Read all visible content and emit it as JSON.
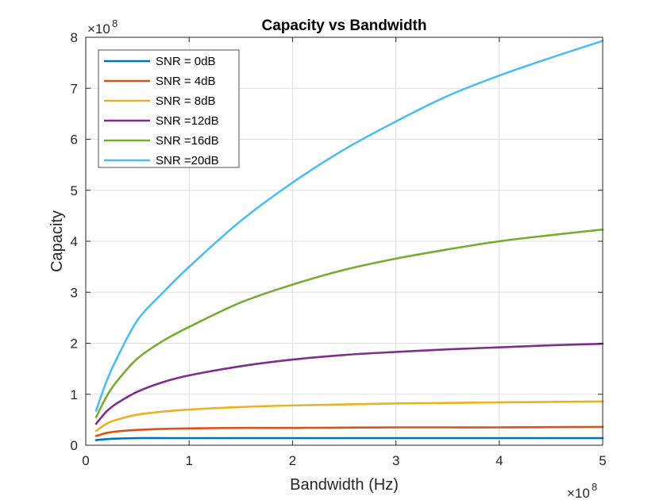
{
  "chart_data": {
    "type": "line",
    "title": "Capacity vs Bandwidth",
    "xlabel": "Bandwidth (Hz)",
    "ylabel": "Capacity",
    "xlim": [
      0,
      5
    ],
    "ylim": [
      0,
      8
    ],
    "x_ticks": [
      "0",
      "1",
      "2",
      "3",
      "4",
      "5"
    ],
    "y_ticks": [
      "0",
      "1",
      "2",
      "3",
      "4",
      "5",
      "6",
      "7",
      "8"
    ],
    "x_exponent": {
      "base": "×10",
      "power": "8"
    },
    "y_exponent": {
      "base": "×10",
      "power": "8"
    },
    "grid": true,
    "legend_position": "top-left",
    "x": [
      0.1,
      0.2,
      0.3,
      0.5,
      0.75,
      1.0,
      1.5,
      2.0,
      2.5,
      3.0,
      3.5,
      4.0,
      4.5,
      5.0
    ],
    "series": [
      {
        "name": "SNR = 0dB",
        "color": "#0072BD",
        "values": [
          0.1,
          0.12,
          0.13,
          0.14,
          0.14,
          0.14,
          0.14,
          0.14,
          0.14,
          0.14,
          0.14,
          0.14,
          0.14,
          0.14
        ]
      },
      {
        "name": "SNR = 4dB",
        "color": "#D95319",
        "values": [
          0.18,
          0.24,
          0.27,
          0.3,
          0.32,
          0.33,
          0.34,
          0.34,
          0.345,
          0.35,
          0.35,
          0.35,
          0.355,
          0.36
        ]
      },
      {
        "name": "SNR = 8dB",
        "color": "#EDB120",
        "values": [
          0.28,
          0.42,
          0.5,
          0.6,
          0.66,
          0.7,
          0.75,
          0.78,
          0.8,
          0.82,
          0.83,
          0.84,
          0.85,
          0.86
        ]
      },
      {
        "name": "SNR =12dB",
        "color": "#7E2F8E",
        "values": [
          0.42,
          0.66,
          0.82,
          1.05,
          1.24,
          1.37,
          1.55,
          1.68,
          1.77,
          1.83,
          1.88,
          1.92,
          1.96,
          1.99
        ]
      },
      {
        "name": "SNR =16dB",
        "color": "#77AC30",
        "values": [
          0.55,
          0.95,
          1.25,
          1.7,
          2.05,
          2.32,
          2.8,
          3.15,
          3.44,
          3.66,
          3.84,
          4.0,
          4.12,
          4.23
        ]
      },
      {
        "name": "SNR =20dB",
        "color": "#4DBEEE",
        "values": [
          0.68,
          1.25,
          1.7,
          2.45,
          3.0,
          3.5,
          4.4,
          5.15,
          5.8,
          6.35,
          6.85,
          7.25,
          7.6,
          7.93
        ]
      }
    ]
  }
}
